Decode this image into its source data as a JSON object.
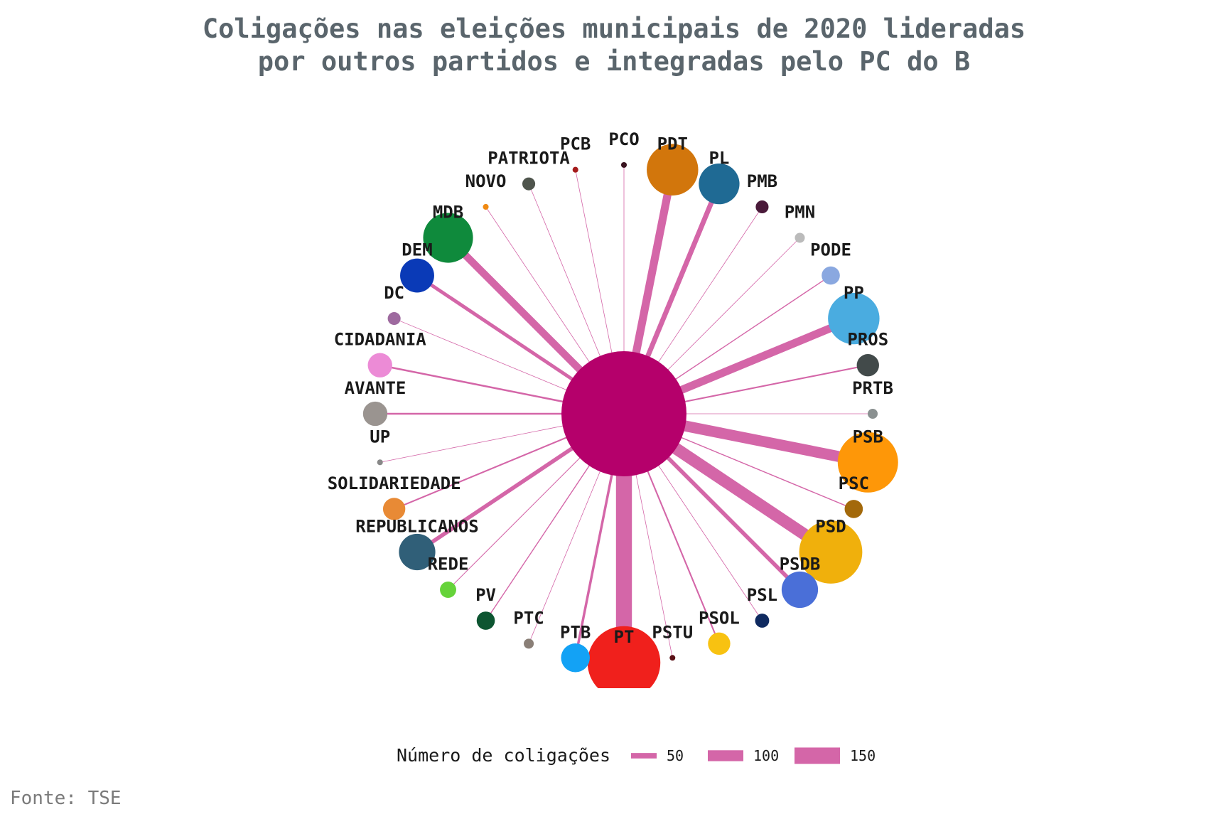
{
  "title": {
    "line1": "Coligações nas eleições municipais de 2020 lideradas",
    "line2": "por outros partidos e integradas pelo PC do B"
  },
  "source": "Fonte: TSE",
  "chart_data": {
    "type": "network",
    "center": {
      "name": "",
      "color": "#b5006b"
    },
    "edge_color": "#d466a8",
    "legend": {
      "title": "Número de coligações",
      "entries": [
        {
          "label": "50",
          "value": 50
        },
        {
          "label": "100",
          "value": 100
        },
        {
          "label": "150",
          "value": 150
        }
      ]
    },
    "nodes": [
      {
        "name": "PT",
        "color": "#f0201c",
        "coligacoes": 160
      },
      {
        "name": "PTB",
        "color": "#13a2f5",
        "coligacoes": 25
      },
      {
        "name": "PTC",
        "color": "#8a7f77",
        "coligacoes": 3
      },
      {
        "name": "PV",
        "color": "#0d5531",
        "coligacoes": 10
      },
      {
        "name": "REDE",
        "color": "#66d33a",
        "coligacoes": 8
      },
      {
        "name": "REPUBLICANOS",
        "color": "#305f78",
        "coligacoes": 40
      },
      {
        "name": "SOLIDARIEDADE",
        "color": "#e88a35",
        "coligacoes": 15
      },
      {
        "name": "UP",
        "color": "#888888",
        "coligacoes": 1
      },
      {
        "name": "AVANTE",
        "color": "#9a9490",
        "coligacoes": 18
      },
      {
        "name": "CIDADANIA",
        "color": "#ec8bd6",
        "coligacoes": 18
      },
      {
        "name": "DC",
        "color": "#9e6a9f",
        "coligacoes": 5
      },
      {
        "name": "DEM",
        "color": "#0a3ab7",
        "coligacoes": 35
      },
      {
        "name": "MDB",
        "color": "#0f8a3c",
        "coligacoes": 75
      },
      {
        "name": "NOVO",
        "color": "#f08a12",
        "coligacoes": 1
      },
      {
        "name": "PATRIOTA",
        "color": "#4f554d",
        "coligacoes": 5
      },
      {
        "name": "PCB",
        "color": "#a51c1c",
        "coligacoes": 1
      },
      {
        "name": "PCO",
        "color": "#3a1420",
        "coligacoes": 1
      },
      {
        "name": "PDT",
        "color": "#d2760c",
        "coligacoes": 80
      },
      {
        "name": "PL",
        "color": "#1f6a94",
        "coligacoes": 50
      },
      {
        "name": "PMB",
        "color": "#4a1a3a",
        "coligacoes": 5
      },
      {
        "name": "PMN",
        "color": "#bbbbbb",
        "coligacoes": 3
      },
      {
        "name": "PODE",
        "color": "#8aa8e0",
        "coligacoes": 10
      },
      {
        "name": "PP",
        "color": "#4aace0",
        "coligacoes": 80
      },
      {
        "name": "PROS",
        "color": "#424a4a",
        "coligacoes": 15
      },
      {
        "name": "PRTB",
        "color": "#8a9090",
        "coligacoes": 3
      },
      {
        "name": "PSB",
        "color": "#fe9708",
        "coligacoes": 110
      },
      {
        "name": "PSC",
        "color": "#a3690b",
        "coligacoes": 10
      },
      {
        "name": "PSD",
        "color": "#f0b00c",
        "coligacoes": 120
      },
      {
        "name": "PSDB",
        "color": "#4a6fd8",
        "coligacoes": 40
      },
      {
        "name": "PSL",
        "color": "#0f2a60",
        "coligacoes": 6
      },
      {
        "name": "PSOL",
        "color": "#f8c211",
        "coligacoes": 15
      },
      {
        "name": "PSTU",
        "color": "#5a1016",
        "coligacoes": 0
      }
    ]
  }
}
